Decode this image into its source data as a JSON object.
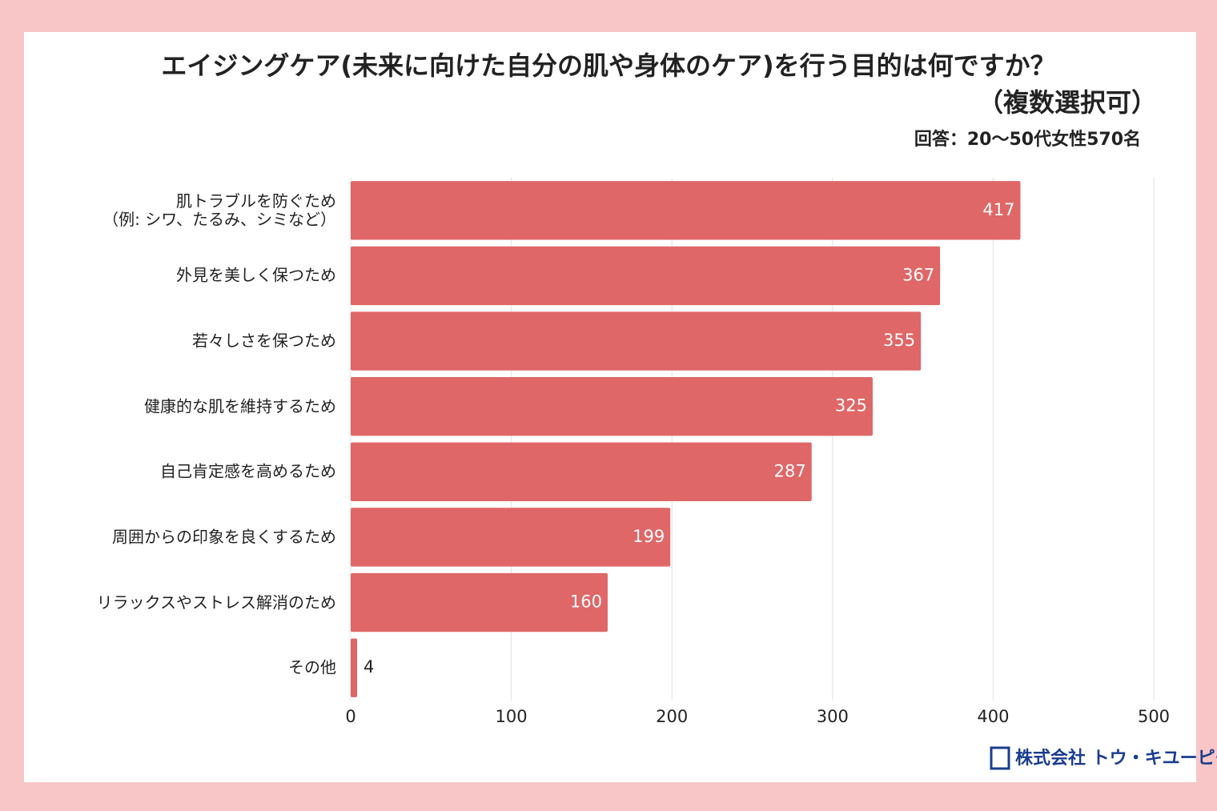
{
  "chart_data": {
    "type": "bar",
    "orientation": "horizontal",
    "title": "エイジングケア(未来に向けた自分の肌や身体のケア)を行う目的は何ですか？",
    "subtitle": "（複数選択可）",
    "note": "回答：20〜50代女性570名",
    "categories": [
      "肌トラブルを防ぐため\n（例: シワ、たるみ、シミなど）",
      "外見を美しく保つため",
      "若々しさを保つため",
      "健康的な肌を維持するため",
      "自己肯定感を高めるため",
      "周囲からの印象を良くするため",
      "リラックスやストレス解消のため",
      "その他"
    ],
    "values": [
      417,
      367,
      355,
      325,
      287,
      199,
      160,
      4
    ],
    "color": "#df6767",
    "xlim": [
      0,
      500
    ],
    "xticks": [
      0,
      100,
      200,
      300,
      400,
      500
    ],
    "grid": true
  },
  "logo": "株式会社 トウ・キユーピー"
}
